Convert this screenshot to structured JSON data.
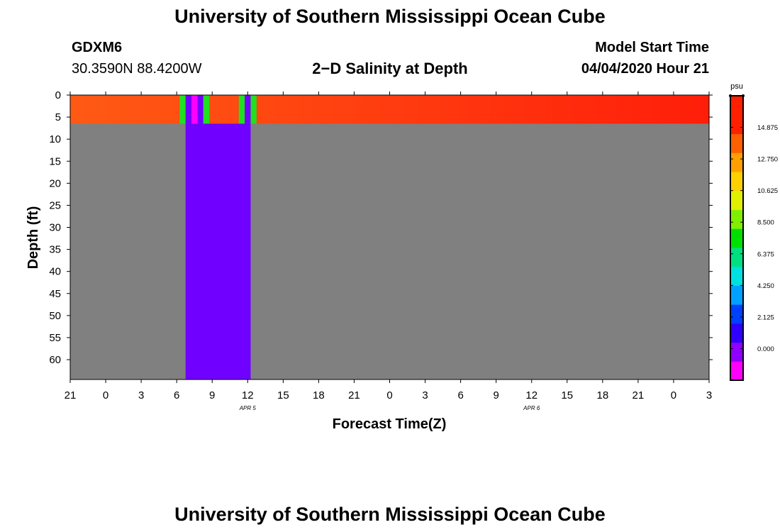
{
  "page": {
    "title_top": "University of Southern Mississippi Ocean Cube",
    "title_bottom": "University of Southern Mississippi Ocean Cube",
    "station_id": "GDXM6",
    "station_coords": "30.3590N 88.4200W",
    "plot_title": "2−D Salinity at Depth",
    "model_start_label": "Model Start Time",
    "model_start_value": "04/04/2020 Hour 21"
  },
  "chart_data": {
    "type": "heatmap",
    "title": "2−D Salinity at Depth",
    "xlabel": "Forecast Time(Z)",
    "ylabel": "Depth (ft)",
    "x_ticks": [
      "21",
      "0",
      "3",
      "6",
      "9",
      "12",
      "15",
      "18",
      "21",
      "0",
      "3",
      "6",
      "9",
      "12",
      "15",
      "18",
      "21",
      "0",
      "3"
    ],
    "x_tick_hours": [
      0,
      3,
      6,
      9,
      12,
      15,
      18,
      21,
      24,
      27,
      30,
      33,
      36,
      39,
      42,
      45,
      48,
      51,
      54
    ],
    "x_range_hours": [
      0,
      54
    ],
    "date_labels": [
      {
        "text": "APR 5",
        "hour": 15
      },
      {
        "text": "APR 6",
        "hour": 39
      }
    ],
    "y_ticks": [
      "0",
      "5",
      "10",
      "15",
      "20",
      "25",
      "30",
      "35",
      "40",
      "45",
      "50",
      "55",
      "60"
    ],
    "y_range_ft": [
      0,
      64.5
    ],
    "colorbar": {
      "unit": "psu",
      "tick_labels": [
        "0.000",
        "2.125",
        "4.250",
        "6.375",
        "8.500",
        "10.625",
        "12.750",
        "14.875"
      ],
      "range": [
        -2.125,
        17.0
      ],
      "colors": [
        "#ff00ff",
        "#9000ff",
        "#3000ff",
        "#0040ff",
        "#00a0ff",
        "#00e0e0",
        "#00e080",
        "#00e000",
        "#80f000",
        "#e0f000",
        "#ffd000",
        "#ffa000",
        "#ff6000",
        "#ff2000",
        "#ff2000"
      ]
    },
    "background_color": "#808080",
    "surface_layer_depth_ft": [
      0,
      6.5
    ],
    "surface_layer_colors": [
      "#ff5a14",
      "#ff1e0a"
    ],
    "surface_stripes": [
      {
        "h0": 9.25,
        "h1": 9.75,
        "color": "#20e020"
      },
      {
        "h0": 9.75,
        "h1": 10.25,
        "color": "#7000ff"
      },
      {
        "h0": 10.25,
        "h1": 10.75,
        "color": "#ff00ff"
      },
      {
        "h0": 10.75,
        "h1": 11.25,
        "color": "#7000ff"
      },
      {
        "h0": 11.25,
        "h1": 11.75,
        "color": "#20e020"
      },
      {
        "h0": 14.25,
        "h1": 14.75,
        "color": "#20e020"
      },
      {
        "h0": 14.75,
        "h1": 15.25,
        "color": "#7000ff"
      },
      {
        "h0": 15.25,
        "h1": 15.75,
        "color": "#20e020"
      }
    ],
    "deep_blocks": [
      {
        "h0": 9.75,
        "h1": 15.25,
        "depth_from_ft": 6.5,
        "depth_to_ft": 64.5,
        "color": "#7000ff"
      }
    ],
    "grid": false
  }
}
